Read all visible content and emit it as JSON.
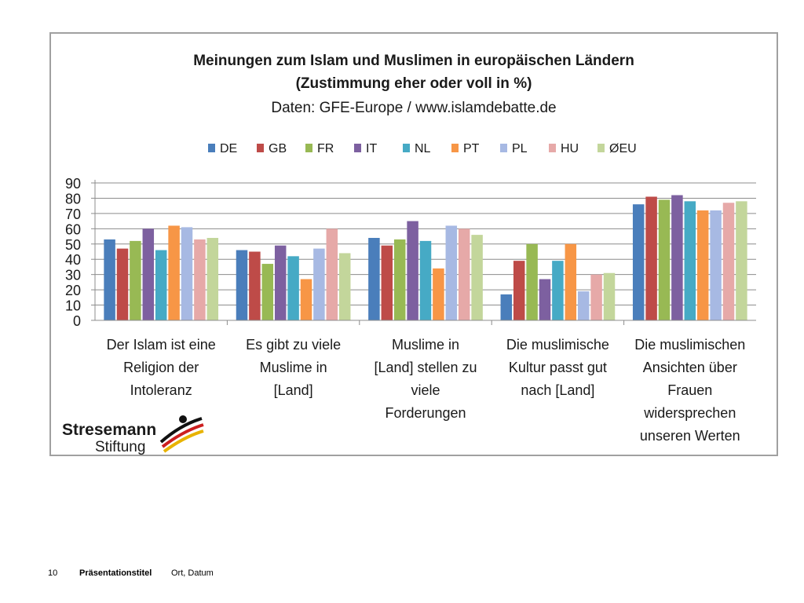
{
  "chart_data": {
    "type": "bar",
    "title": "Meinungen zum Islam und Muslimen in europäischen Ländern",
    "subtitle": "(Zustimmung eher oder voll in %)",
    "source": "Daten: GFE-Europe / www.islamdebatte.de",
    "ylim": [
      0,
      90
    ],
    "yticks": [
      0,
      10,
      20,
      30,
      40,
      50,
      60,
      70,
      80,
      90
    ],
    "grid": true,
    "legend_position": "top",
    "categories": [
      [
        "Der Islam ist eine",
        "Religion der",
        "Intoleranz"
      ],
      [
        "Es gibt zu viele",
        "Muslime in",
        "[Land]"
      ],
      [
        "Muslime in",
        "[Land] stellen zu",
        "viele",
        "Forderungen"
      ],
      [
        "Die muslimische",
        "Kultur passt gut",
        "nach [Land]"
      ],
      [
        "Die muslimischen",
        "Ansichten über",
        "Frauen",
        "widersprechen",
        "unseren Werten"
      ]
    ],
    "series": [
      {
        "name": "DE",
        "color": "#4a7ebb",
        "values": [
          53,
          46,
          54,
          17,
          76
        ]
      },
      {
        "name": "GB",
        "color": "#be4b48",
        "values": [
          47,
          45,
          49,
          39,
          81
        ]
      },
      {
        "name": "FR",
        "color": "#98b954",
        "values": [
          52,
          37,
          53,
          50,
          79
        ]
      },
      {
        "name": "IT",
        "color": "#7d60a0",
        "values": [
          60,
          49,
          65,
          27,
          82
        ]
      },
      {
        "name": "NL",
        "color": "#46aac5",
        "values": [
          46,
          42,
          52,
          39,
          78
        ]
      },
      {
        "name": "PT",
        "color": "#f79646",
        "values": [
          62,
          27,
          34,
          50,
          72
        ]
      },
      {
        "name": "PL",
        "color": "#a7b9e3",
        "values": [
          61,
          47,
          62,
          19,
          72
        ]
      },
      {
        "name": "HU",
        "color": "#e6a9a8",
        "values": [
          53,
          60,
          60,
          30,
          77
        ]
      },
      {
        "name": "ØEU",
        "color": "#c3d69b",
        "values": [
          54,
          44,
          56,
          31,
          78
        ]
      }
    ]
  },
  "logo": {
    "line1": "Stresemann",
    "line2": "Stiftung"
  },
  "footer": {
    "page_number": "10",
    "presentation_title": "Präsentationstitel",
    "place_date": "Ort, Datum"
  }
}
